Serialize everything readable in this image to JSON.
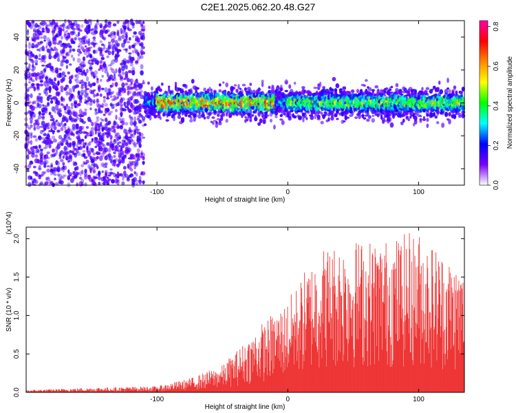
{
  "title": "C2E1.2025.062.20.48.G27",
  "colorbar": {
    "label": "Normalized spectral amplitude",
    "ticks": [
      "0.0",
      "0.2",
      "0.4",
      "0.6",
      "0.8"
    ],
    "range": [
      0,
      0.83
    ],
    "colors": [
      "#ffffff",
      "#7a00ff",
      "#0000ff",
      "#00ffff",
      "#00ff00",
      "#ffff00",
      "#ff8800",
      "#ff0000",
      "#ff00aa"
    ]
  },
  "chart_data": [
    {
      "type": "heatmap",
      "xlabel": "Height of straight line (km)",
      "ylabel": "Frequency (Hz)",
      "xlim": [
        -200,
        135
      ],
      "ylim": [
        -50,
        50
      ],
      "xticks": [
        "-100",
        "0",
        "100"
      ],
      "yticks": [
        "-40",
        "-20",
        "0",
        "20",
        "40"
      ],
      "band_center_hz": 0,
      "dense_region_x": [
        -200,
        -110
      ],
      "peak_amplitude_region_x": [
        -100,
        -10
      ]
    },
    {
      "type": "area",
      "xlabel": "Height of straight line (km)",
      "ylabel": "SNR (10 * v/v)",
      "scale_label": "(x10^4)",
      "xlim": [
        -200,
        135
      ],
      "ylim": [
        0,
        2.15
      ],
      "xticks": [
        "-100",
        "0",
        "100"
      ],
      "yticks": [
        "0.0",
        "0.5",
        "1.0",
        "1.5",
        "2.0"
      ],
      "color": "#ee3333",
      "envelope_x": [
        -200,
        -150,
        -100,
        -75,
        -50,
        -25,
        0,
        25,
        50,
        75,
        100,
        135
      ],
      "envelope_y": [
        0.03,
        0.06,
        0.08,
        0.18,
        0.35,
        0.8,
        1.2,
        1.9,
        2.0,
        2.0,
        2.1,
        1.6
      ]
    }
  ]
}
